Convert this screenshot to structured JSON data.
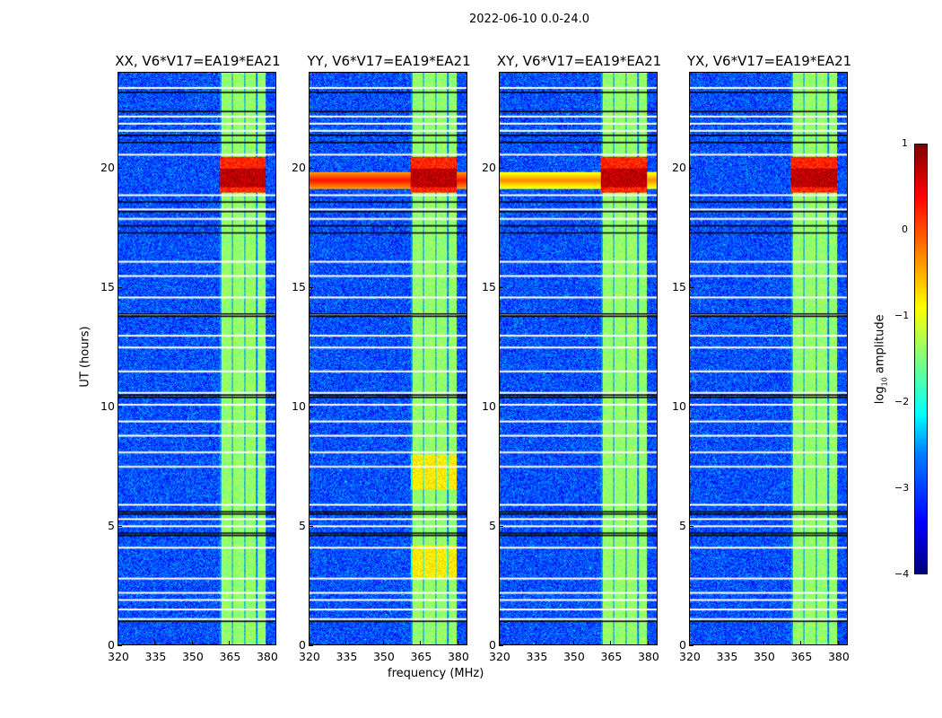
{
  "suptitle": "2022-06-10 0.0-24.0",
  "chart_data": {
    "type": "heatmap",
    "xlabel": "frequency (MHz)",
    "ylabel": "UT (hours)",
    "xlim": [
      320,
      384
    ],
    "ylim": [
      0,
      24
    ],
    "xticks": [
      320,
      335,
      350,
      365,
      380
    ],
    "yticks": [
      0,
      5,
      10,
      15,
      20
    ],
    "panels": [
      {
        "title": "XX, V6*V17=EA19*EA21",
        "broadband_rfi_hours": []
      },
      {
        "title": "YY, V6*V17=EA19*EA21",
        "broadband_rfi_hours": [
          19.5
        ]
      },
      {
        "title": "XY, V6*V17=EA19*EA21",
        "broadband_rfi_hours": [
          19.5
        ]
      },
      {
        "title": "YX, V6*V17=EA19*EA21",
        "broadband_rfi_hours": []
      }
    ],
    "rfi_band_MHz": [
      361,
      380
    ],
    "strong_rfi_hours": [
      19,
      20.5
    ],
    "background_log_amp": -3,
    "band_log_amp": -1.4,
    "flagged_hours": [
      23.4,
      22.2,
      21.9,
      21.6,
      20.6,
      18.9,
      18.3,
      17.9,
      16.1,
      15.5,
      14.6,
      13.9,
      13.0,
      12.5,
      11.5,
      10.6,
      10.1,
      9.4,
      8.8,
      8.1,
      7.5,
      5.9,
      5.3,
      5.0,
      4.1,
      2.8,
      2.2,
      1.9,
      1.5,
      1.1
    ],
    "blank_hours": [
      23.2,
      22.4,
      21.4,
      21.1,
      18.6,
      18.2,
      17.6,
      17.3,
      13.9,
      13.8,
      10.5,
      10.4,
      5.6,
      5.5,
      4.7,
      4.6,
      1.0
    ],
    "colorbar": {
      "label": "log10 amplitude",
      "label_main": "log",
      "label_sub": "10",
      "label_rest": " amplitude",
      "range": [
        -4,
        1
      ],
      "ticks": [
        "1",
        "0",
        "−1",
        "−2",
        "−3",
        "−4"
      ],
      "colormap": "jet"
    }
  }
}
